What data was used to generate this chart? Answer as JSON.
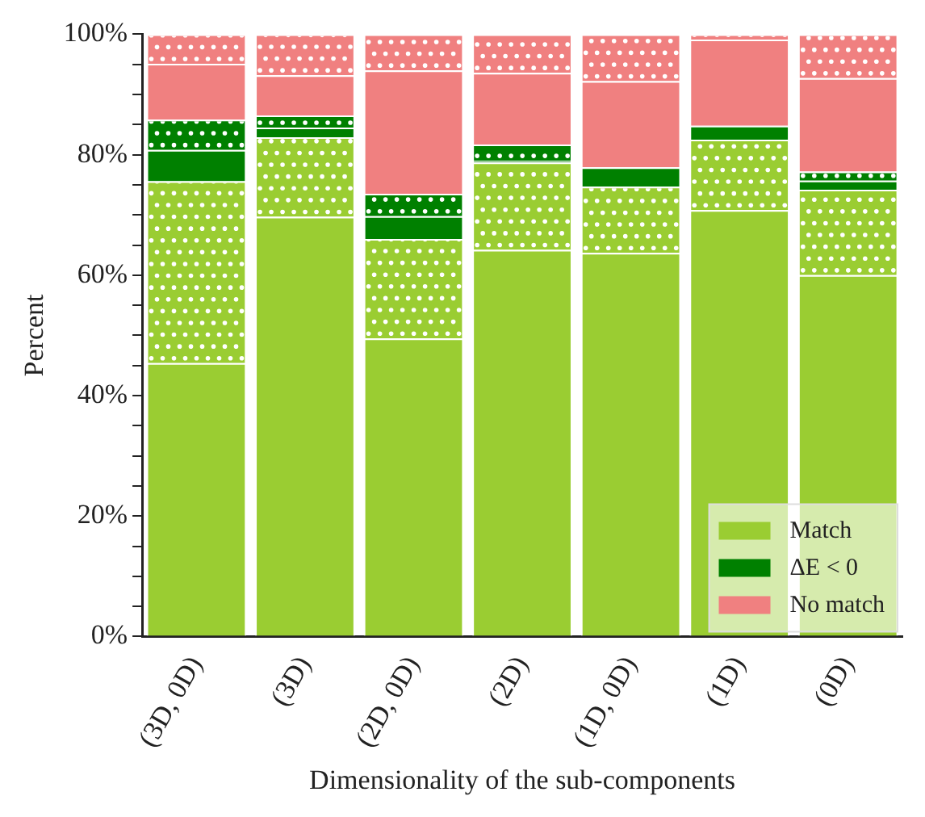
{
  "chart_data": {
    "type": "bar",
    "stacked": true,
    "xlabel": "Dimensionality of the sub-components",
    "ylabel": "Percent",
    "categories": [
      "(3D, 0D)",
      "(3D)",
      "(2D, 0D)",
      "(2D)",
      "(1D, 0D)",
      "(1D)",
      "(0D)"
    ],
    "series": [
      {
        "name": "Match",
        "color": "#9acd32",
        "values": [
          45.4,
          69.7,
          49.5,
          64.2,
          63.7,
          70.8,
          60.0
        ]
      },
      {
        "color": "#9acd32",
        "values": [
          30.2,
          13.2,
          16.5,
          14.5,
          11.0,
          11.7,
          14.2
        ]
      },
      {
        "name": "ΔE < 0",
        "color": "#008000",
        "values": [
          5.2,
          1.6,
          3.8,
          0.3,
          3.2,
          2.3,
          1.5
        ]
      },
      {
        "color": "#008000",
        "values": [
          5.0,
          2.0,
          3.7,
          2.7,
          0,
          0,
          1.5
        ]
      },
      {
        "name": "No match",
        "color": "#f08080",
        "values": [
          9.3,
          6.7,
          20.5,
          11.9,
          14.3,
          14.3,
          15.5
        ]
      },
      {
        "color": "#f08080",
        "values": [
          4.9,
          6.8,
          6.0,
          6.4,
          7.8,
          0.9,
          7.3
        ]
      }
    ],
    "ylim": [
      0,
      100
    ],
    "yticks": [
      {
        "value": 0,
        "label": "0%"
      },
      {
        "value": 5,
        "label": null
      },
      {
        "value": 10,
        "label": null
      },
      {
        "value": 15,
        "label": null
      },
      {
        "value": 20,
        "label": "20%"
      },
      {
        "value": 25,
        "label": null
      },
      {
        "value": 30,
        "label": null
      },
      {
        "value": 35,
        "label": null
      },
      {
        "value": 40,
        "label": "40%"
      },
      {
        "value": 45,
        "label": null
      },
      {
        "value": 50,
        "label": null
      },
      {
        "value": 55,
        "label": null
      },
      {
        "value": 60,
        "label": "60%"
      },
      {
        "value": 65,
        "label": null
      },
      {
        "value": 70,
        "label": null
      },
      {
        "value": 75,
        "label": null
      },
      {
        "value": 80,
        "label": "80%"
      },
      {
        "value": 85,
        "label": null
      },
      {
        "value": 90,
        "label": null
      },
      {
        "value": 95,
        "label": null
      },
      {
        "value": 100,
        "label": "100%"
      }
    ],
    "grid": false,
    "legend": "bottom right"
  }
}
